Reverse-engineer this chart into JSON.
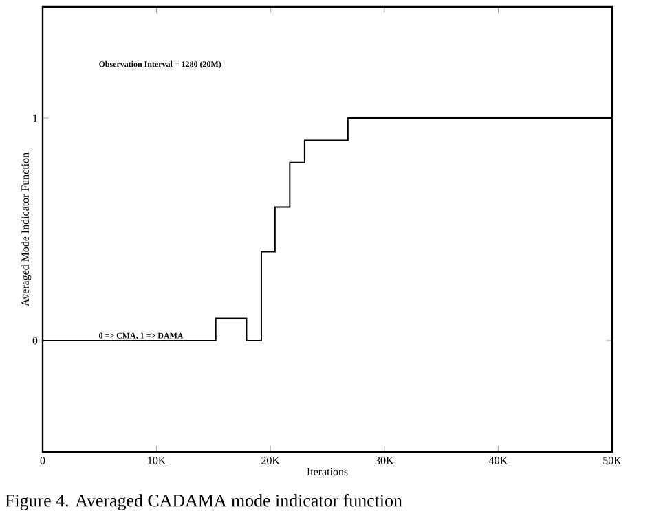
{
  "chart_data": {
    "type": "step",
    "xlabel": "Iterations",
    "ylabel": "Averaged Mode Indicator Function",
    "annotations": [
      "Observation Interval = 1280 (20M)",
      "0 => CMA, 1 => DAMA",
      "Figure 4. Averaged CADAMA mode indicator function"
    ],
    "x": [
      0,
      15200,
      17900,
      19200,
      20400,
      21700,
      23000,
      26800,
      50000
    ],
    "values": [
      0,
      0.1,
      0,
      0.4,
      0.6,
      0.8,
      0.9,
      1,
      1
    ],
    "color": "#000000",
    "line_style": "solid",
    "marker": "none",
    "xlim": [
      0,
      50000
    ],
    "ylim": [
      -0.5,
      1.5
    ],
    "xticks": [
      0,
      {
        "value": 10000,
        "label": "10K"
      },
      {
        "value": 20000,
        "label": "20K"
      },
      {
        "value": 30000,
        "label": "30K"
      },
      {
        "value": 40000,
        "label": "40K"
      },
      {
        "value": 50000,
        "label": "50K"
      }
    ],
    "yticks": [
      0,
      1
    ]
  }
}
